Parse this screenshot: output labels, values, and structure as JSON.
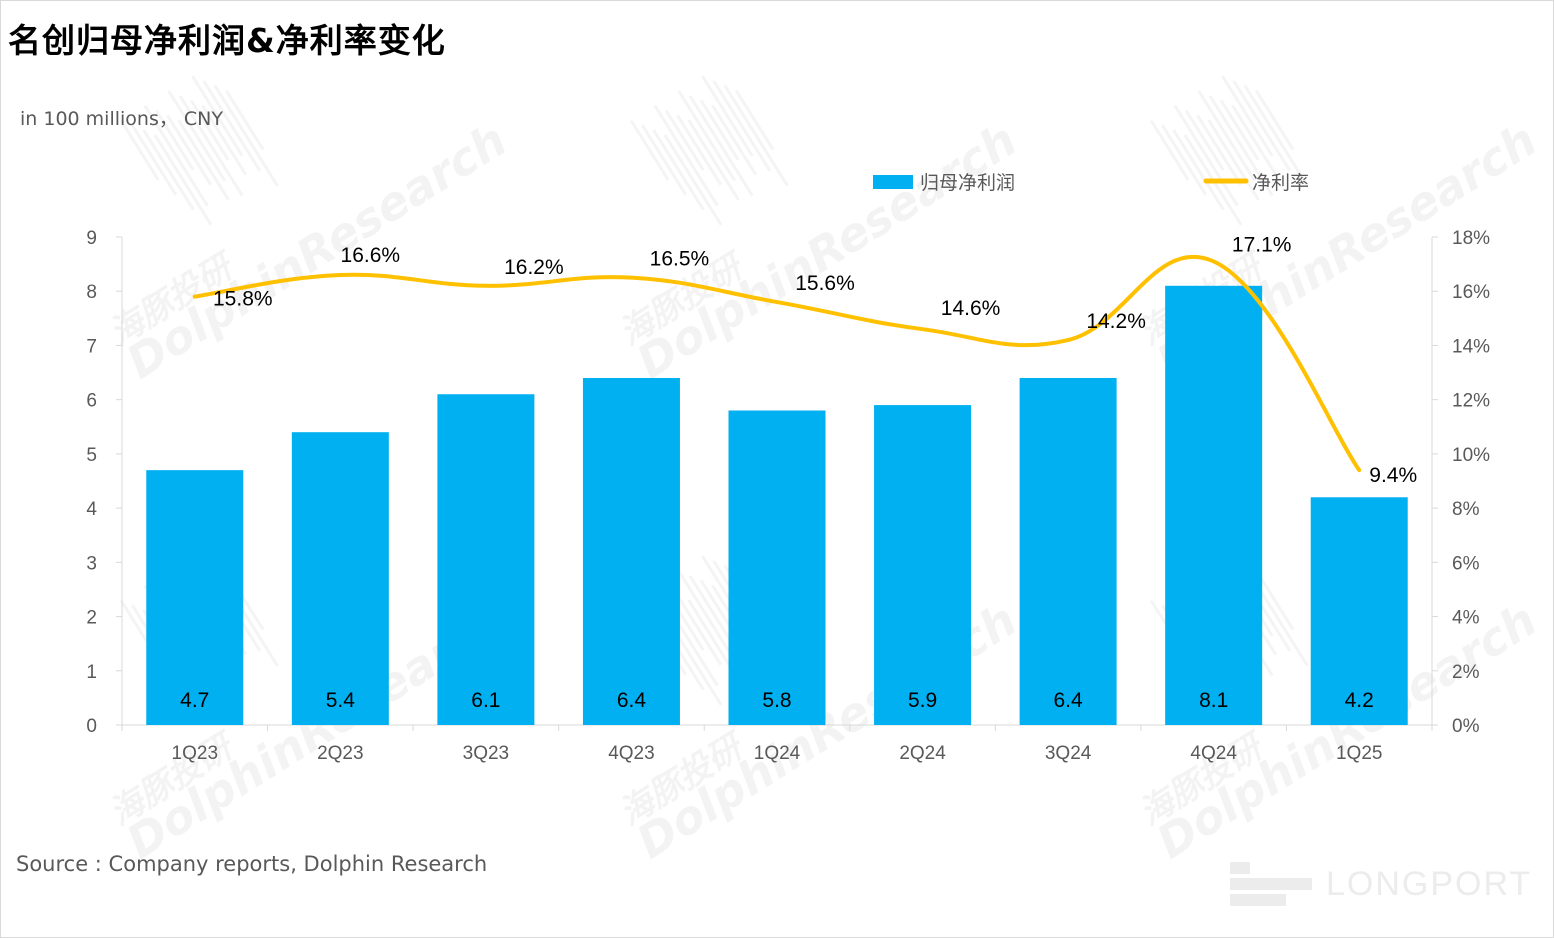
{
  "title": "名创归母净利润&净利率变化",
  "unit_label": "in 100 millions， CNY",
  "source": "Source : Company reports, Dolphin Research",
  "brand": "LONGPORT",
  "watermark": {
    "cn": "海豚投研",
    "en": "DolphinResearch"
  },
  "colors": {
    "bar": "#00B0F0",
    "line": "#FFC000",
    "axis": "#d9d9d9",
    "text": "#595959"
  },
  "chart_data": {
    "type": "bar",
    "categories": [
      "1Q23",
      "2Q23",
      "3Q23",
      "4Q23",
      "1Q24",
      "2Q24",
      "3Q24",
      "4Q24",
      "1Q25"
    ],
    "series": [
      {
        "name": "归母净利润",
        "type": "bar",
        "axis": "left",
        "values": [
          4.7,
          5.4,
          6.1,
          6.4,
          5.8,
          5.9,
          6.4,
          8.1,
          4.2
        ],
        "labels": [
          "4.7",
          "5.4",
          "6.1",
          "6.4",
          "5.8",
          "5.9",
          "6.4",
          "8.1",
          "4.2"
        ]
      },
      {
        "name": "净利率",
        "type": "line",
        "axis": "right",
        "values": [
          15.8,
          16.6,
          16.2,
          16.5,
          15.6,
          14.6,
          14.2,
          17.1,
          9.4
        ],
        "labels": [
          "15.8%",
          "16.6%",
          "16.2%",
          "16.5%",
          "15.6%",
          "14.6%",
          "14.2%",
          "17.1%",
          "9.4%"
        ]
      }
    ],
    "y_left": {
      "lim": [
        0,
        9
      ],
      "ticks": [
        "0",
        "1",
        "2",
        "3",
        "4",
        "5",
        "6",
        "7",
        "8",
        "9"
      ]
    },
    "y_right": {
      "lim": [
        0,
        18
      ],
      "ticks": [
        "0%",
        "2%",
        "4%",
        "6%",
        "8%",
        "10%",
        "12%",
        "14%",
        "16%",
        "18%"
      ]
    },
    "legend": {
      "placement": "top",
      "items": [
        "归母净利润",
        "净利率"
      ]
    },
    "grid": false
  }
}
